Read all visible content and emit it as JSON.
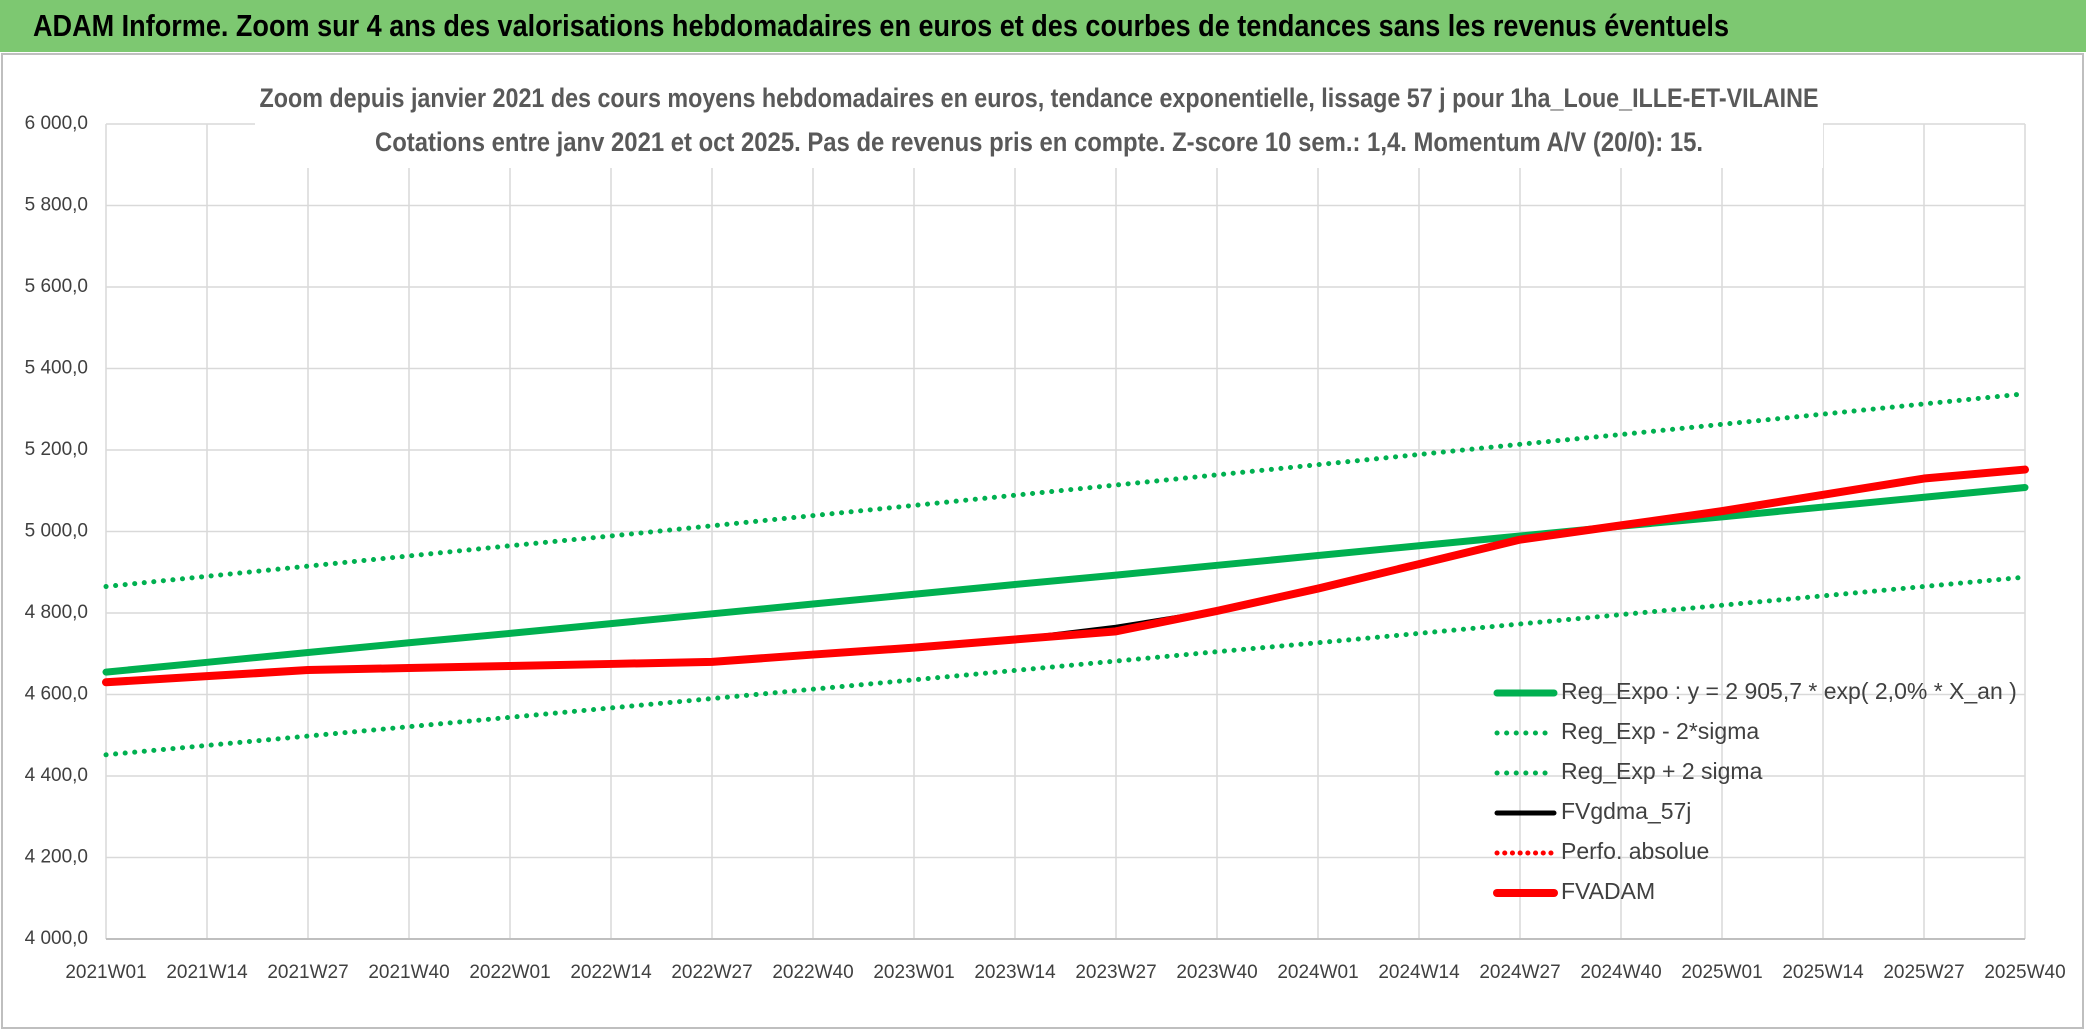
{
  "chart_data": {
    "type": "line",
    "title": "ADAM Informe. Zoom sur 4 ans des valorisations hebdomadaires en euros et des courbes de tendances sans les revenus éventuels",
    "subtitle": [
      "Zoom depuis janvier 2021 des cours moyens hebdomadaires en euros, tendance exponentielle, lissage 57 j pour 1ha_Loue_ILLE-ET-VILAINE",
      "Cotations entre janv 2021 et oct 2025. Pas de revenus pris en compte. Z-score 10 sem.: 1,4. Momentum A/V (20/0): 15."
    ],
    "categories": [
      "2021W01",
      "2021W14",
      "2021W27",
      "2021W40",
      "2022W01",
      "2022W14",
      "2022W27",
      "2022W40",
      "2023W01",
      "2023W14",
      "2023W27",
      "2023W40",
      "2024W01",
      "2024W14",
      "2024W27",
      "2024W40",
      "2025W01",
      "2025W14",
      "2025W27",
      "2025W40"
    ],
    "series": [
      {
        "name": "Reg_Expo : y = 2 905,7 * exp( 2,0% *  X_an )",
        "color": "#00b050",
        "style": "solid",
        "width": 7,
        "values": [
          4655,
          4679,
          4703,
          4727,
          4750,
          4774,
          4798,
          4822,
          4846,
          4870,
          4893,
          4917,
          4941,
          4965,
          4989,
          5013,
          5036,
          5060,
          5084,
          5108
        ]
      },
      {
        "name": "Reg_Exp - 2*sigma",
        "color": "#00b050",
        "style": "dotted",
        "width": 5,
        "values": [
          4452,
          4475,
          4498,
          4521,
          4544,
          4567,
          4590,
          4613,
          4636,
          4659,
          4682,
          4705,
          4727,
          4750,
          4773,
          4796,
          4819,
          4842,
          4865,
          4888
        ]
      },
      {
        "name": "Reg_Exp + 2 sigma",
        "color": "#00b050",
        "style": "dotted",
        "width": 5,
        "values": [
          4865,
          4890,
          4915,
          4940,
          4965,
          4989,
          5014,
          5039,
          5064,
          5089,
          5114,
          5139,
          5164,
          5189,
          5214,
          5238,
          5263,
          5288,
          5313,
          5338
        ]
      },
      {
        "name": "FVgdma_57j",
        "color": "#000000",
        "style": "solid",
        "width": 5,
        "values": [
          4630,
          4645,
          4660,
          4665,
          4670,
          4675,
          4680,
          4698,
          4715,
          4735,
          4765,
          4805,
          4860,
          4920,
          4980,
          5015,
          5050,
          5090,
          5130,
          5150
        ]
      },
      {
        "name": "Perfo. absolue",
        "color": "#ff0000",
        "style": "dotted",
        "width": 4,
        "values": [
          4630,
          4645,
          4660,
          4665,
          4670,
          4675,
          4680,
          4698,
          4715,
          4735,
          4755,
          4805,
          4860,
          4920,
          4980,
          5015,
          5050,
          5090,
          5130,
          5152
        ]
      },
      {
        "name": "FVADAM",
        "color": "#ff0000",
        "style": "solid",
        "width": 8,
        "values": [
          4630,
          4645,
          4660,
          4665,
          4670,
          4675,
          4680,
          4698,
          4715,
          4735,
          4755,
          4805,
          4860,
          4920,
          4980,
          5015,
          5050,
          5090,
          5130,
          5152
        ]
      }
    ],
    "ylim": [
      4000,
      6000
    ],
    "yticks": [
      {
        "value": 4000,
        "label": "4 000,0"
      },
      {
        "value": 4200,
        "label": "4 200,0"
      },
      {
        "value": 4400,
        "label": "4 400,0"
      },
      {
        "value": 4600,
        "label": "4 600,0"
      },
      {
        "value": 4800,
        "label": "4 800,0"
      },
      {
        "value": 5000,
        "label": "5 000,0"
      },
      {
        "value": 5200,
        "label": "5 200,0"
      },
      {
        "value": 5400,
        "label": "5 400,0"
      },
      {
        "value": 5600,
        "label": "5 600,0"
      },
      {
        "value": 5800,
        "label": "5 800,0"
      },
      {
        "value": 6000,
        "label": "6 000,0"
      }
    ],
    "grid": true
  }
}
